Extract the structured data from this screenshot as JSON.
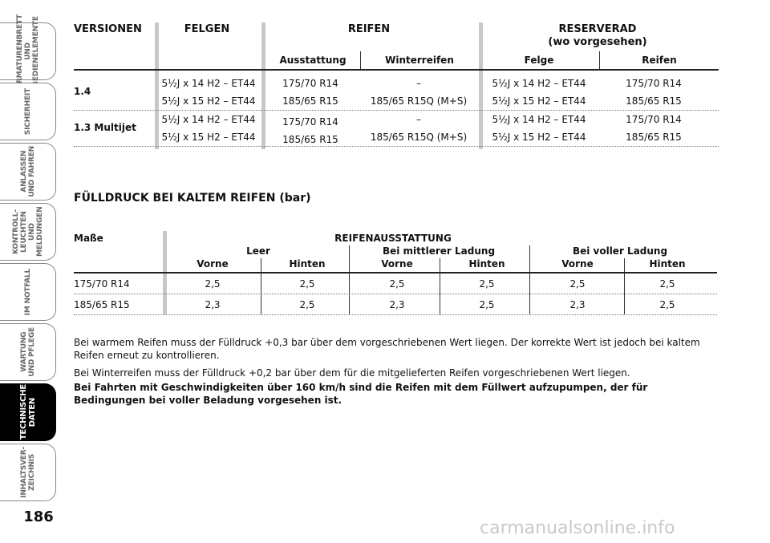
{
  "sidebar": {
    "tabs": [
      [
        "ARMATURENBRETT",
        "UND",
        "BEDIENELEMENTE"
      ],
      [
        "SICHERHEIT"
      ],
      [
        "ANLASSEN",
        "UND FAHREN"
      ],
      [
        "KONTROLL-",
        "LEUCHTEN UND",
        "MELDUNGEN"
      ],
      [
        "IM NOTFALL"
      ],
      [
        "WARTUNG",
        "UND PFLEGE"
      ],
      [
        "TECHNISCHE",
        "DATEN"
      ],
      [
        "INHALTSVER-",
        "ZEICHNIS"
      ]
    ],
    "active": 6,
    "page_number": "186"
  },
  "table1": {
    "headers": {
      "versionen": "VERSIONEN",
      "felgen": "FELGEN",
      "reifen": "REIFEN",
      "reserverad": "RESERVERAD",
      "reserverad_note": "(wo vorgesehen)",
      "ausstattung": "Ausstattung",
      "winterreifen": "Winterreifen",
      "felge": "Felge",
      "reifen_sub": "Reifen"
    },
    "rows": [
      {
        "version": "1.4",
        "felgen": [
          "5½J x 14 H2 – ET44",
          "5½J x 15 H2 – ET44"
        ],
        "ausstattung": [
          "175/70 R14",
          "185/65 R15"
        ],
        "winter": [
          "–",
          "185/65 R15Q (M+S)"
        ],
        "felge": [
          "5½J x 14 H2 – ET44",
          "5½J x 15 H2 – ET44"
        ],
        "reifen": [
          "175/70 R14",
          "185/65 R15"
        ]
      },
      {
        "version": "1.3 Multijet",
        "felgen": [
          "5½J x 14 H2 – ET44",
          "5½J x 15 H2 – ET44"
        ],
        "ausstattung": [
          "175/70 R14",
          "185/65 R15"
        ],
        "winter": [
          "–",
          "185/65 R15Q (M+S)"
        ],
        "felge": [
          "5½J x 14 H2 – ET44",
          "5½J x 15 H2 – ET44"
        ],
        "reifen": [
          "175/70 R14",
          "185/65 R15"
        ]
      }
    ]
  },
  "heading": "FÜLLDRUCK BEI KALTEM REIFEN (bar)",
  "table2": {
    "masse": "Maße",
    "title": "REIFENAUSSTATTUNG",
    "groups": [
      "Leer",
      "Bei mittlerer Ladung",
      "Bei voller Ladung"
    ],
    "sub": [
      "Vorne",
      "Hinten",
      "Vorne",
      "Hinten",
      "Vorne",
      "Hinten"
    ],
    "rows": [
      [
        "175/70 R14",
        "2,5",
        "2,5",
        "2,5",
        "2,5",
        "2,5",
        "2,5"
      ],
      [
        "185/65 R15",
        "2,3",
        "2,5",
        "2,3",
        "2,5",
        "2,3",
        "2,5"
      ]
    ]
  },
  "paragraphs": [
    "Bei warmem Reifen muss der Fülldruck +0,3 bar über dem vorgeschriebenen Wert liegen. Der korrekte Wert ist jedoch bei kaltem Reifen erneut zu kontrollieren.",
    "Bei Winterreifen muss der Fülldruck +0,2 bar über dem für die mitgelieferten Reifen vorgeschriebenen Wert liegen.",
    "Bei Fahrten mit Geschwindigkeiten über 160 km/h sind die Reifen mit dem Füllwert aufzupumpen, der für Bedingungen bei voller Beladung vorgesehen ist."
  ],
  "watermark": "carmanualsonline.info"
}
